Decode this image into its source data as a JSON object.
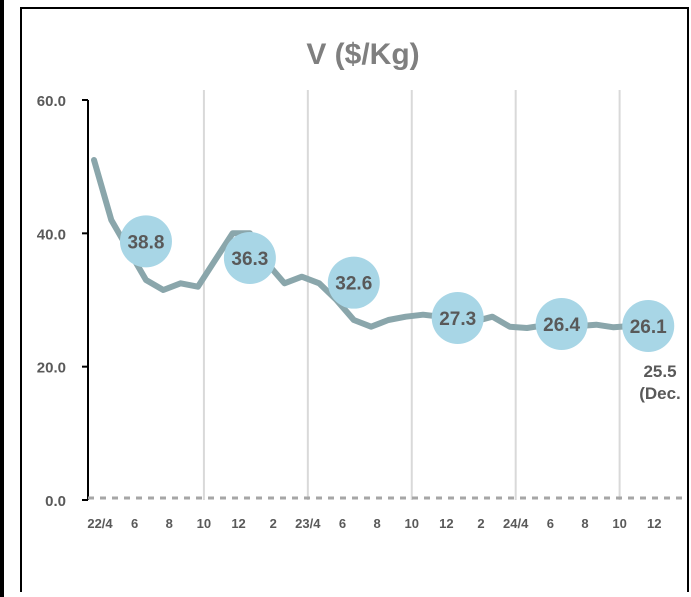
{
  "chart_data": {
    "type": "line",
    "title": "V ($/Kg)",
    "xlabel": "",
    "ylabel": "",
    "ylim": [
      0,
      60
    ],
    "yticks": [
      "0.0",
      "20.0",
      "40.0",
      "60.0"
    ],
    "xtick_labels": [
      "22/4",
      "6",
      "8",
      "10",
      "12",
      "2",
      "23/4",
      "6",
      "8",
      "10",
      "12",
      "2",
      "24/4",
      "6",
      "8",
      "10",
      "12"
    ],
    "grid": "vertical at year boundaries",
    "series": [
      {
        "color": "#8aa6ab",
        "x": [
          "2022-04",
          "2022-05",
          "2022-06",
          "2022-07",
          "2022-08",
          "2022-09",
          "2022-10",
          "2022-11",
          "2022-12",
          "2023-01",
          "2023-02",
          "2023-03",
          "2023-04",
          "2023-05",
          "2023-06",
          "2023-07",
          "2023-08",
          "2023-09",
          "2023-10",
          "2023-11",
          "2023-12",
          "2024-01",
          "2024-02",
          "2024-03",
          "2024-04",
          "2024-05",
          "2024-06",
          "2024-07",
          "2024-08",
          "2024-09",
          "2024-10",
          "2024-11",
          "2024-12"
        ],
        "values": [
          51.0,
          42.0,
          37.5,
          33.0,
          31.5,
          32.5,
          32.0,
          36.0,
          40.0,
          40.0,
          35.5,
          32.5,
          33.5,
          32.5,
          30.0,
          27.0,
          26.0,
          27.0,
          27.5,
          27.8,
          27.5,
          26.0,
          26.8,
          27.5,
          26.0,
          25.8,
          26.2,
          25.9,
          26.1,
          26.3,
          25.9,
          26.1,
          26.0
        ]
      }
    ],
    "bubbles": [
      {
        "label": "38.8",
        "x": "2022-07",
        "y": 38.8
      },
      {
        "label": "36.3",
        "x": "2023-01",
        "y": 36.3
      },
      {
        "label": "32.6",
        "x": "2023-07",
        "y": 32.6
      },
      {
        "label": "27.3",
        "x": "2024-01",
        "y": 27.3
      },
      {
        "label": "26.4",
        "x": "2024-07",
        "y": 26.4
      },
      {
        "label": "26.1",
        "x": "2024-12",
        "y": 26.1
      }
    ],
    "bubble_color": "#a8d6e6",
    "annotation": {
      "line1": "25.5",
      "line2": "(Dec."
    }
  }
}
